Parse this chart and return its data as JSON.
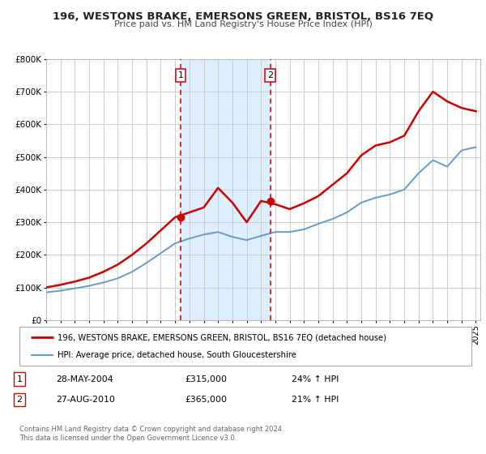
{
  "title": "196, WESTONS BRAKE, EMERSONS GREEN, BRISTOL, BS16 7EQ",
  "subtitle": "Price paid vs. HM Land Registry's House Price Index (HPI)",
  "legend_line1": "196, WESTONS BRAKE, EMERSONS GREEN, BRISTOL, BS16 7EQ (detached house)",
  "legend_line2": "HPI: Average price, detached house, South Gloucestershire",
  "footnote": "Contains HM Land Registry data © Crown copyright and database right 2024.\nThis data is licensed under the Open Government Licence v3.0.",
  "sale1_date": "28-MAY-2004",
  "sale1_price": "£315,000",
  "sale1_hpi": "24% ↑ HPI",
  "sale2_date": "27-AUG-2010",
  "sale2_price": "£365,000",
  "sale2_hpi": "21% ↑ HPI",
  "red_color": "#cc0000",
  "blue_color": "#6699cc",
  "shade_color": "#ddeeff",
  "grid_color": "#cccccc",
  "bg_color": "#ffffff",
  "ylim": [
    0,
    800000
  ],
  "yticks": [
    0,
    100000,
    200000,
    300000,
    400000,
    500000,
    600000,
    700000,
    800000
  ],
  "ytick_labels": [
    "£0",
    "£100K",
    "£200K",
    "£300K",
    "£400K",
    "£500K",
    "£600K",
    "£700K",
    "£800K"
  ],
  "hpi_x": [
    1995,
    1996,
    1997,
    1998,
    1999,
    2000,
    2001,
    2002,
    2003,
    2004,
    2005,
    2006,
    2007,
    2008,
    2009,
    2010,
    2011,
    2012,
    2013,
    2014,
    2015,
    2016,
    2017,
    2018,
    2019,
    2020,
    2021,
    2022,
    2023,
    2024,
    2025
  ],
  "hpi_y": [
    85000,
    90000,
    97000,
    105000,
    115000,
    128000,
    148000,
    175000,
    205000,
    235000,
    250000,
    262000,
    270000,
    255000,
    245000,
    258000,
    270000,
    270000,
    278000,
    295000,
    310000,
    330000,
    360000,
    375000,
    385000,
    400000,
    450000,
    490000,
    470000,
    520000,
    530000
  ],
  "prop_x": [
    1995,
    1996,
    1997,
    1998,
    1999,
    2000,
    2001,
    2002,
    2003,
    2004,
    2005,
    2006,
    2007,
    2008,
    2009,
    2010,
    2011,
    2012,
    2013,
    2014,
    2015,
    2016,
    2017,
    2018,
    2019,
    2020,
    2021,
    2022,
    2023,
    2024,
    2025
  ],
  "prop_y": [
    100000,
    108000,
    118000,
    130000,
    148000,
    170000,
    200000,
    235000,
    275000,
    315000,
    330000,
    345000,
    405000,
    360000,
    300000,
    365000,
    355000,
    340000,
    358000,
    380000,
    415000,
    450000,
    505000,
    535000,
    545000,
    565000,
    640000,
    700000,
    670000,
    650000,
    640000
  ],
  "sale1_x": 2004.4,
  "sale1_y": 315000,
  "sale2_x": 2010.65,
  "sale2_y": 365000,
  "xlim": [
    1995,
    2025.3
  ],
  "xticks": [
    1995,
    1996,
    1997,
    1998,
    1999,
    2000,
    2001,
    2002,
    2003,
    2004,
    2005,
    2006,
    2007,
    2008,
    2009,
    2010,
    2011,
    2012,
    2013,
    2014,
    2015,
    2016,
    2017,
    2018,
    2019,
    2020,
    2021,
    2022,
    2023,
    2024,
    2025
  ]
}
